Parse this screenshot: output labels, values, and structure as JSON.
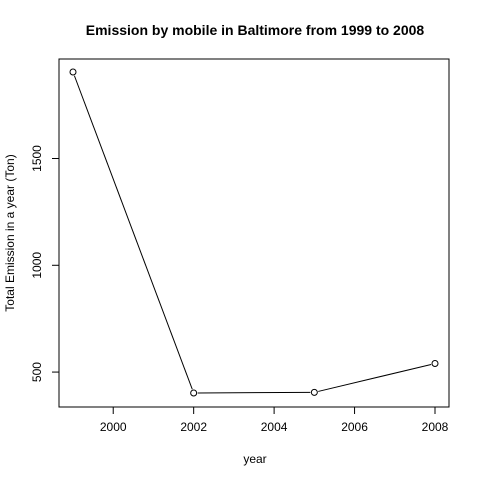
{
  "chart_data": {
    "type": "line",
    "title": "Emission by mobile in Baltimore from 1999 to 2008",
    "xlabel": "year",
    "ylabel": "Total Emission in a year (Ton)",
    "x": [
      1999,
      2002,
      2005,
      2008
    ],
    "series": [
      {
        "name": "Total Emission",
        "values": [
          1905,
          402,
          405,
          540
        ]
      }
    ],
    "xlim": [
      1999,
      2008
    ],
    "ylim": [
      402,
      1905
    ],
    "x_ticks": [
      2000,
      2002,
      2004,
      2006,
      2008
    ],
    "y_ticks": [
      500,
      1000,
      1500
    ],
    "x_tick_labels": [
      "2000",
      "2002",
      "2004",
      "2006",
      "2008"
    ],
    "y_tick_labels": [
      "500",
      "1000",
      "1500"
    ],
    "grid": false,
    "line_color": "#000000",
    "point_style": "open-circle"
  }
}
